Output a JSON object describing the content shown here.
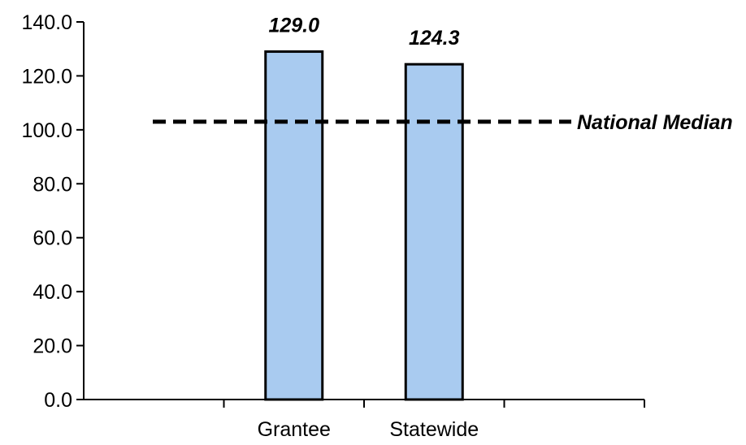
{
  "chart_data": {
    "type": "bar",
    "categories": [
      "Grantee",
      "Statewide"
    ],
    "values": [
      129.0,
      124.3
    ],
    "value_labels": [
      "129.0",
      "124.3"
    ],
    "ylim": [
      0,
      140
    ],
    "y_ticks": [
      0,
      20,
      40,
      60,
      80,
      100,
      120,
      140
    ],
    "y_tick_labels": [
      "0.0",
      "20.0",
      "40.0",
      "60.0",
      "80.0",
      "100.0",
      "120.0",
      "140.0"
    ],
    "x_slot_count": 4,
    "bar_slots": [
      1,
      2
    ],
    "reference_line": {
      "label": "National Median",
      "value": 103,
      "style": "dashed"
    },
    "grid": false,
    "legend": "none",
    "colors": {
      "bar_fill": "#a9cbf0",
      "bar_stroke": "#000000",
      "axis": "#000000",
      "reference_line": "#000000"
    }
  }
}
